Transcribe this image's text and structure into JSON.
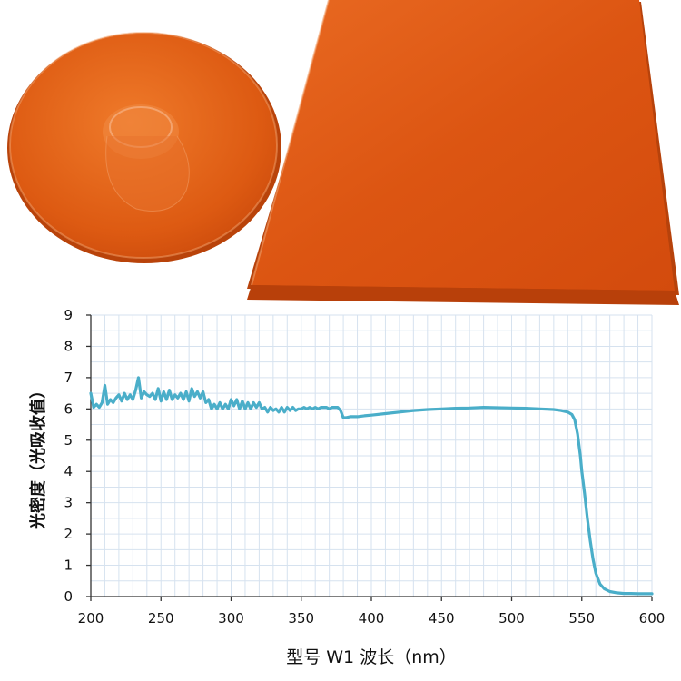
{
  "product_photos": {
    "disc_filter": "round-orange-filter-photo",
    "plate_filter": "rectangular-orange-filter-photo",
    "filter_color": "#e0560f"
  },
  "chart_data": {
    "type": "line",
    "title": "",
    "xlabel": "型号 W1 波长（nm）",
    "ylabel": "光密度（光吸收值）",
    "xlim": [
      200,
      600
    ],
    "ylim": [
      0,
      9
    ],
    "xticks": [
      200,
      250,
      300,
      350,
      400,
      450,
      500,
      550,
      600
    ],
    "yticks": [
      0,
      1,
      2,
      3,
      4,
      5,
      6,
      7,
      8,
      9
    ],
    "grid": true,
    "legend": "none",
    "line_color": "#4aaec9",
    "series": [
      {
        "x": [
          200,
          202,
          204,
          206,
          208,
          210,
          212,
          214,
          216,
          218,
          220,
          222,
          224,
          226,
          228,
          230,
          232,
          234,
          236,
          238,
          240,
          242,
          244,
          246,
          248,
          250,
          252,
          254,
          256,
          258,
          260,
          262,
          264,
          266,
          268,
          270,
          272,
          274,
          276,
          278,
          280,
          282,
          284,
          286,
          288,
          290,
          292,
          294,
          296,
          298,
          300,
          302,
          304,
          306,
          308,
          310,
          312,
          314,
          316,
          318,
          320,
          322,
          324,
          326,
          328,
          330,
          332,
          334,
          336,
          338,
          340,
          342,
          344,
          346,
          348,
          350,
          352,
          354,
          356,
          358,
          360,
          362,
          364,
          366,
          368,
          370,
          372,
          374,
          376,
          378,
          380,
          382,
          385,
          390,
          395,
          400,
          410,
          420,
          430,
          440,
          450,
          460,
          470,
          480,
          490,
          500,
          510,
          520,
          530,
          535,
          540,
          543,
          545,
          547,
          549,
          550,
          552,
          554,
          556,
          558,
          560,
          563,
          566,
          570,
          575,
          580,
          585,
          590,
          595,
          600
        ],
        "y": [
          6.5,
          6.05,
          6.15,
          6.05,
          6.2,
          6.75,
          6.15,
          6.3,
          6.2,
          6.35,
          6.45,
          6.25,
          6.5,
          6.3,
          6.45,
          6.3,
          6.6,
          7.0,
          6.35,
          6.55,
          6.45,
          6.4,
          6.5,
          6.3,
          6.65,
          6.25,
          6.55,
          6.3,
          6.6,
          6.3,
          6.45,
          6.35,
          6.5,
          6.3,
          6.55,
          6.25,
          6.65,
          6.4,
          6.55,
          6.35,
          6.55,
          6.2,
          6.3,
          6.0,
          6.15,
          6.0,
          6.2,
          6.0,
          6.15,
          6.0,
          6.3,
          6.1,
          6.3,
          6.0,
          6.25,
          6.0,
          6.2,
          6.0,
          6.2,
          6.05,
          6.2,
          6.0,
          6.05,
          5.9,
          6.05,
          5.95,
          6.0,
          5.9,
          6.05,
          5.9,
          6.05,
          5.95,
          6.05,
          5.95,
          6.0,
          6.0,
          6.05,
          6.0,
          6.05,
          6.0,
          6.05,
          6.0,
          6.05,
          6.05,
          6.05,
          6.0,
          6.05,
          6.05,
          6.05,
          5.95,
          5.72,
          5.72,
          5.75,
          5.75,
          5.78,
          5.8,
          5.85,
          5.9,
          5.95,
          5.98,
          6.0,
          6.02,
          6.03,
          6.05,
          6.04,
          6.03,
          6.02,
          6.0,
          5.98,
          5.95,
          5.9,
          5.82,
          5.65,
          5.2,
          4.5,
          4.0,
          3.3,
          2.5,
          1.8,
          1.2,
          0.75,
          0.4,
          0.25,
          0.16,
          0.12,
          0.1,
          0.1,
          0.09,
          0.09,
          0.09
        ]
      }
    ]
  }
}
